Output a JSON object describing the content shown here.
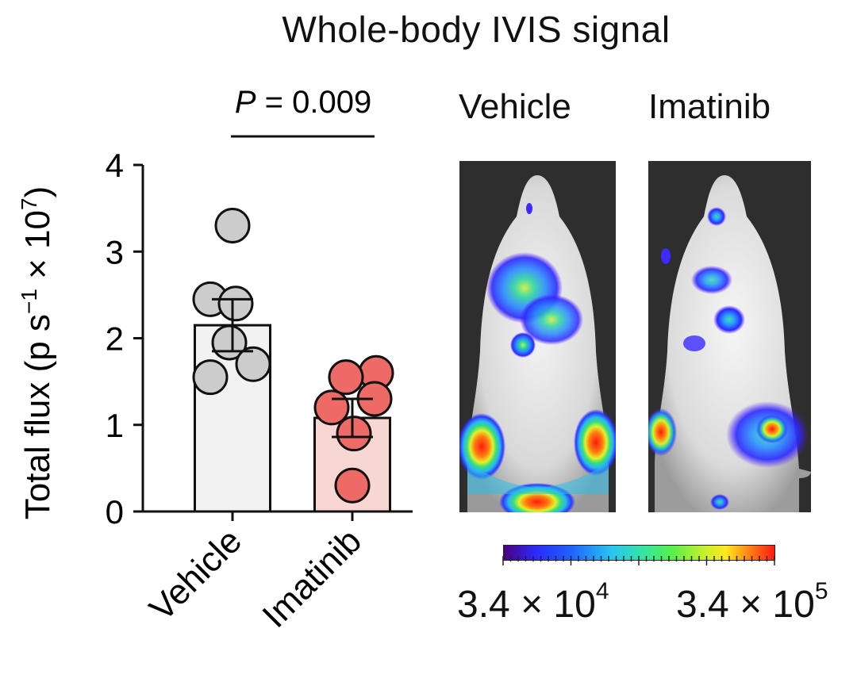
{
  "chart_data": {
    "type": "bar",
    "title": "Whole-body IVIS signal",
    "categories": [
      "Vehicle",
      "Imatinib"
    ],
    "ylabel": "Total flux (p s⁻¹ × 10⁷)",
    "ylabel_main": "Total flux (p s",
    "ylabel_sup1": "−1",
    "ylabel_mid": " × 10",
    "ylabel_sup2": "7",
    "ylabel_end": ")",
    "ylim": [
      0,
      4
    ],
    "yticks": [
      "0",
      "1",
      "2",
      "3",
      "4"
    ],
    "series": [
      {
        "name": "Vehicle",
        "mean": 2.15,
        "sem": 0.3,
        "points": [
          3.3,
          2.45,
          2.4,
          1.95,
          1.7,
          1.55
        ],
        "bar_color": "#f2f2f2",
        "point_color": "#cccccc"
      },
      {
        "name": "Imatinib",
        "mean": 1.08,
        "sem": 0.22,
        "points": [
          1.6,
          1.55,
          1.3,
          1.2,
          0.9,
          0.3
        ],
        "bar_color": "#f8d6d4",
        "point_color": "#ee6a66"
      }
    ],
    "annotation": {
      "p_label": "P",
      "p_value": " = 0.009"
    }
  },
  "images": {
    "vehicle_label": "Vehicle",
    "imatinib_label": "Imatinib"
  },
  "colorbar": {
    "min_base": "3.4 × 10",
    "min_exp": "4",
    "max_base": "3.4 × 10",
    "max_exp": "5"
  }
}
